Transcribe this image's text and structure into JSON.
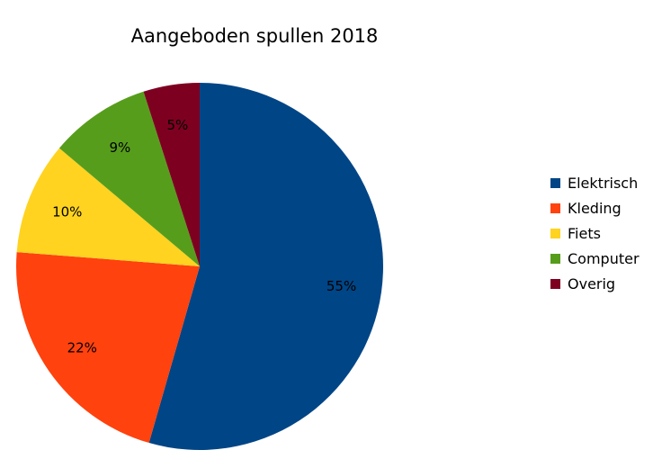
{
  "chart_data": {
    "type": "pie",
    "title": "Aangeboden spullen 2018",
    "legend_position": "right",
    "categories": [
      "Elektrisch",
      "Kleding",
      "Fiets",
      "Computer",
      "Overig"
    ],
    "values": [
      55,
      22,
      10,
      9,
      5
    ],
    "labels": [
      "55%",
      "22%",
      "10%",
      "9%",
      "5%"
    ],
    "colors": [
      "#004586",
      "#ff420e",
      "#ffd320",
      "#579d1c",
      "#7e0021"
    ]
  }
}
